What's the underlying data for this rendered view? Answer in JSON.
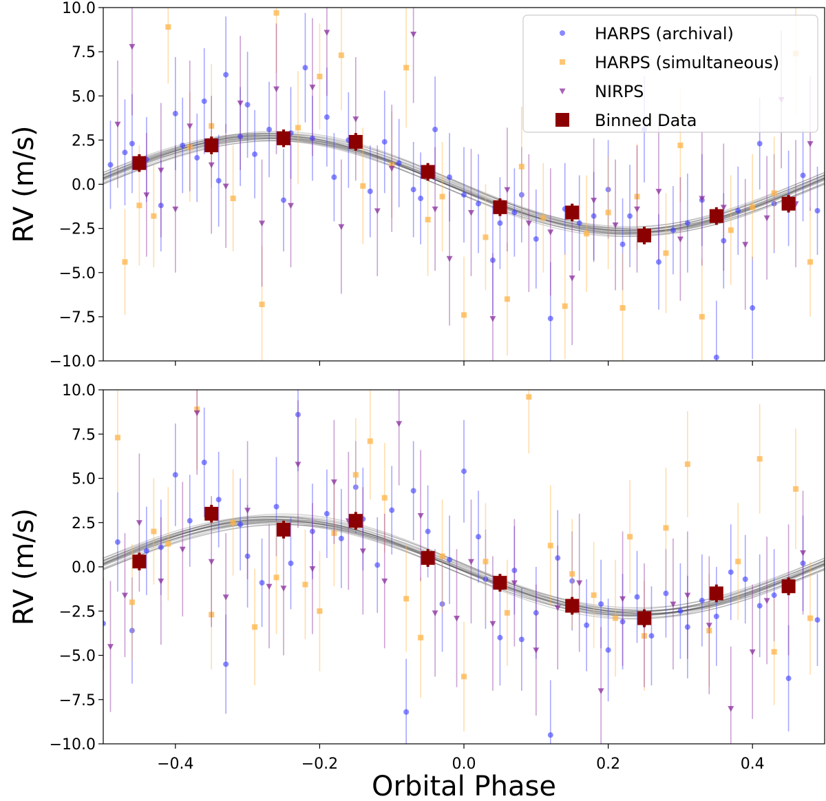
{
  "figure": {
    "xlabel": "Orbital Phase",
    "colors": {
      "harps_archival": "#3b3bff",
      "harps_simultaneous": "#ffb347",
      "nirps": "#8a2e9e",
      "binned": "#8b0000",
      "model": "#222222"
    },
    "legend": {
      "placement": "top-right (upper panel)",
      "entries": [
        {
          "label": "HARPS (archival)",
          "marker": "circle",
          "color": "#3b3bff"
        },
        {
          "label": "HARPS (simultaneous)",
          "marker": "square",
          "color": "#ffb347"
        },
        {
          "label": "NIRPS",
          "marker": "triangle-down",
          "color": "#8a2e9e"
        },
        {
          "label": "Binned Data",
          "marker": "big-square",
          "color": "#8b0000"
        }
      ]
    }
  },
  "chart_data": [
    {
      "type": "scatter",
      "panel": "top",
      "title": "",
      "xlabel": "",
      "ylabel": "RV (m/s)",
      "xlim": [
        -0.5,
        0.5
      ],
      "ylim": [
        -10,
        10
      ],
      "xticks": [
        -0.4,
        -0.2,
        0.0,
        0.2,
        0.4
      ],
      "yticks": [
        -10.0,
        -7.5,
        -5.0,
        -2.5,
        0.0,
        2.5,
        5.0,
        7.5,
        10.0
      ],
      "show_xtick_labels": false,
      "grid": false,
      "model": {
        "amplitude": 2.7,
        "peak_phase": -0.27,
        "n_draws": 20,
        "spread": 0.15
      },
      "series": [
        {
          "name": "HARPS (archival)",
          "x": [
            -0.49,
            -0.47,
            -0.46,
            -0.44,
            -0.42,
            -0.4,
            -0.39,
            -0.37,
            -0.36,
            -0.34,
            -0.33,
            -0.31,
            -0.3,
            -0.29,
            -0.27,
            -0.25,
            -0.24,
            -0.22,
            -0.21,
            -0.19,
            -0.18,
            -0.16,
            -0.13,
            -0.11,
            -0.09,
            -0.07,
            -0.06,
            -0.04,
            -0.02,
            0.0,
            0.02,
            0.04,
            0.05,
            0.07,
            0.08,
            0.1,
            0.12,
            0.14,
            0.16,
            0.18,
            0.2,
            0.22,
            0.23,
            0.25,
            0.27,
            0.29,
            0.31,
            0.33,
            0.35,
            0.36,
            0.38,
            0.4,
            0.41,
            0.43,
            0.45,
            0.47,
            0.49
          ],
          "y": [
            1.1,
            1.8,
            2.3,
            1.4,
            -1.2,
            4.0,
            2.2,
            1.5,
            4.7,
            0.2,
            6.2,
            2.7,
            4.5,
            1.7,
            3.1,
            -0.9,
            2.9,
            6.6,
            2.6,
            3.8,
            0.4,
            2.5,
            -0.4,
            2.4,
            1.2,
            -0.3,
            -0.8,
            3.1,
            0.4,
            -0.6,
            -1.1,
            -4.3,
            -2.2,
            -1.6,
            -0.6,
            -3.1,
            -7.6,
            -1.4,
            -2.2,
            -1.8,
            -0.3,
            -3.4,
            -1.8,
            3.1,
            -4.4,
            -2.6,
            -2.2,
            -0.9,
            -9.8,
            -3.2,
            -1.5,
            -7.0,
            2.3,
            -1.1,
            -0.8,
            0.5,
            -1.5
          ],
          "err": [
            2.5,
            3.0,
            2.8,
            2.4,
            2.6,
            3.2,
            2.7,
            2.5,
            3.0,
            2.6,
            3.3,
            2.8,
            3.0,
            2.5,
            2.7,
            2.9,
            2.6,
            3.1,
            2.4,
            2.8,
            2.5,
            2.7,
            2.6,
            2.9,
            2.5,
            2.7,
            2.6,
            3.0,
            2.5,
            2.7,
            2.8,
            3.1,
            2.6,
            2.5,
            2.7,
            2.8,
            3.2,
            2.6,
            2.7,
            2.5,
            2.8,
            2.6,
            2.9,
            3.0,
            2.7,
            2.5,
            2.8,
            2.6,
            3.2,
            2.7,
            2.5,
            2.9,
            2.6,
            2.8,
            2.7,
            2.6,
            2.5
          ]
        },
        {
          "name": "HARPS (simultaneous)",
          "x": [
            -0.47,
            -0.45,
            -0.43,
            -0.41,
            -0.38,
            -0.35,
            -0.32,
            -0.28,
            -0.26,
            -0.23,
            -0.2,
            -0.17,
            -0.14,
            -0.1,
            -0.08,
            -0.05,
            -0.03,
            0.0,
            0.03,
            0.06,
            0.08,
            0.11,
            0.14,
            0.17,
            0.2,
            0.22,
            0.24,
            0.28,
            0.3,
            0.33,
            0.37,
            0.4,
            0.43,
            0.46,
            0.48
          ],
          "y": [
            -4.4,
            -1.2,
            -1.8,
            8.9,
            2.1,
            3.3,
            -0.8,
            -6.8,
            9.7,
            3.2,
            6.1,
            7.3,
            -0.1,
            1.1,
            6.6,
            -2.0,
            -0.7,
            -7.4,
            -3.0,
            -6.5,
            1.0,
            -1.9,
            -6.9,
            -2.8,
            -1.6,
            -7.0,
            -0.7,
            -3.9,
            2.2,
            -7.5,
            -2.6,
            -1.3,
            -0.5,
            7.4,
            -4.4
          ],
          "err": [
            3.0,
            3.4,
            2.9,
            3.2,
            3.1,
            3.5,
            3.0,
            3.3,
            3.4,
            3.2,
            3.0,
            3.1,
            3.3,
            3.0,
            3.4,
            3.2,
            3.1,
            3.3,
            3.0,
            3.2,
            3.4,
            3.1,
            3.0,
            3.3,
            3.2,
            3.1,
            3.0,
            3.4,
            3.2,
            3.3,
            3.1,
            3.0,
            3.2,
            3.4,
            3.1
          ]
        },
        {
          "name": "NIRPS",
          "x": [
            -0.48,
            -0.46,
            -0.44,
            -0.42,
            -0.4,
            -0.38,
            -0.35,
            -0.33,
            -0.31,
            -0.28,
            -0.26,
            -0.24,
            -0.21,
            -0.19,
            -0.17,
            -0.15,
            -0.12,
            -0.1,
            -0.07,
            -0.04,
            -0.02,
            0.01,
            0.04,
            0.06,
            0.09,
            0.12,
            0.15,
            0.18,
            0.21,
            0.24,
            0.27,
            0.3,
            0.33,
            0.36,
            0.39,
            0.42,
            0.44,
            0.46,
            0.48
          ],
          "y": [
            3.4,
            7.8,
            -0.6,
            0.8,
            -1.4,
            3.3,
            1.1,
            -0.1,
            4.6,
            -2.2,
            5.4,
            -1.2,
            5.5,
            8.6,
            -2.4,
            3.7,
            -1.5,
            0.9,
            8.5,
            -1.4,
            -4.2,
            -1.6,
            -7.6,
            -0.3,
            -2.2,
            -2.7,
            -5.3,
            -0.9,
            -2.3,
            -1.4,
            -0.4,
            -3.1,
            -0.8,
            -1.3,
            -3.4,
            -1.9,
            4.8,
            -1.1,
            2.3
          ],
          "err": [
            3.6,
            3.9,
            3.5,
            3.8,
            3.6,
            3.7,
            3.9,
            3.5,
            3.8,
            3.6,
            3.7,
            3.5,
            3.9,
            3.6,
            3.8,
            3.5,
            3.7,
            3.6,
            3.9,
            3.5,
            3.8,
            3.6,
            3.7,
            3.5,
            3.9,
            3.6,
            3.8,
            3.5,
            3.7,
            3.6,
            3.9,
            3.5,
            3.8,
            3.6,
            3.7,
            3.5,
            3.9,
            3.6,
            3.8
          ]
        },
        {
          "name": "Binned Data",
          "x": [
            -0.45,
            -0.35,
            -0.25,
            -0.15,
            -0.05,
            0.05,
            0.15,
            0.25,
            0.35,
            0.45
          ],
          "y": [
            1.2,
            2.2,
            2.6,
            2.4,
            0.7,
            -1.3,
            -1.6,
            -2.9,
            -1.8,
            -1.1
          ],
          "err": [
            0.5,
            0.5,
            0.5,
            0.5,
            0.5,
            0.5,
            0.5,
            0.5,
            0.5,
            0.5
          ]
        }
      ]
    },
    {
      "type": "scatter",
      "panel": "bottom",
      "title": "",
      "xlabel": "Orbital Phase",
      "ylabel": "RV (m/s)",
      "xlim": [
        -0.5,
        0.5
      ],
      "ylim": [
        -10,
        10
      ],
      "xticks": [
        -0.4,
        -0.2,
        0.0,
        0.2,
        0.4
      ],
      "yticks": [
        -10.0,
        -7.5,
        -5.0,
        -2.5,
        0.0,
        2.5,
        5.0,
        7.5,
        10.0
      ],
      "show_xtick_labels": true,
      "grid": false,
      "model": {
        "amplitude": 2.65,
        "peak_phase": -0.26,
        "n_draws": 20,
        "spread": 0.2
      },
      "series": [
        {
          "name": "HARPS (archival)",
          "x": [
            -0.5,
            -0.48,
            -0.46,
            -0.44,
            -0.42,
            -0.4,
            -0.38,
            -0.36,
            -0.34,
            -0.33,
            -0.31,
            -0.3,
            -0.28,
            -0.26,
            -0.24,
            -0.23,
            -0.21,
            -0.19,
            -0.17,
            -0.15,
            -0.14,
            -0.12,
            -0.1,
            -0.08,
            -0.07,
            -0.05,
            -0.03,
            -0.02,
            0.0,
            0.02,
            0.03,
            0.05,
            0.07,
            0.08,
            0.1,
            0.12,
            0.13,
            0.15,
            0.17,
            0.19,
            0.2,
            0.22,
            0.24,
            0.26,
            0.28,
            0.3,
            0.31,
            0.33,
            0.35,
            0.37,
            0.39,
            0.41,
            0.43,
            0.45,
            0.47,
            0.49
          ],
          "y": [
            -3.2,
            1.4,
            -3.6,
            0.9,
            1.1,
            5.2,
            2.6,
            5.9,
            3.8,
            -5.5,
            2.4,
            0.6,
            -0.9,
            3.4,
            0.2,
            8.6,
            2.0,
            3.0,
            1.6,
            4.5,
            2.7,
            0.1,
            3.2,
            -8.2,
            4.3,
            2.0,
            -2.1,
            0.4,
            5.4,
            1.7,
            -0.7,
            -4.0,
            -0.2,
            -4.1,
            -2.6,
            -9.5,
            0.5,
            -0.8,
            -3.3,
            -2.1,
            -4.7,
            -3.1,
            -1.7,
            -3.9,
            -1.5,
            -2.5,
            -3.4,
            -1.9,
            -2.8,
            -0.3,
            -0.7,
            -2.2,
            -1.6,
            -6.3,
            0.2,
            -3.0
          ],
          "err": [
            2.6,
            2.8,
            3.0,
            2.5,
            2.7,
            2.9,
            2.6,
            3.1,
            2.7,
            2.8,
            2.6,
            2.9,
            2.5,
            2.8,
            2.6,
            3.2,
            2.7,
            2.5,
            2.8,
            2.6,
            2.9,
            2.7,
            2.5,
            3.0,
            2.8,
            2.6,
            2.7,
            2.5,
            2.9,
            2.6,
            2.8,
            2.7,
            2.5,
            2.9,
            2.6,
            3.1,
            2.7,
            2.8,
            2.6,
            2.5,
            2.9,
            2.7,
            2.6,
            2.8,
            2.5,
            2.7,
            2.9,
            2.6,
            2.8,
            2.7,
            2.5,
            2.9,
            2.6,
            3.0,
            2.7,
            2.6
          ]
        },
        {
          "name": "HARPS (simultaneous)",
          "x": [
            -0.48,
            -0.46,
            -0.43,
            -0.41,
            -0.37,
            -0.35,
            -0.32,
            -0.29,
            -0.26,
            -0.22,
            -0.2,
            -0.18,
            -0.15,
            -0.13,
            -0.11,
            -0.08,
            -0.06,
            -0.03,
            0.0,
            0.03,
            0.06,
            0.09,
            0.12,
            0.15,
            0.18,
            0.21,
            0.23,
            0.25,
            0.28,
            0.31,
            0.34,
            0.38,
            0.41,
            0.43,
            0.46,
            0.48
          ],
          "y": [
            7.3,
            -2.0,
            2.0,
            1.3,
            8.9,
            -2.7,
            2.5,
            -3.4,
            -0.6,
            -1.0,
            -2.5,
            1.9,
            5.2,
            7.1,
            3.9,
            -1.8,
            -4.0,
            0.6,
            -6.2,
            0.3,
            -2.6,
            9.6,
            1.2,
            -0.4,
            -1.6,
            -2.9,
            1.7,
            -3.9,
            2.2,
            5.8,
            -3.6,
            0.3,
            6.1,
            -4.8,
            4.4,
            -2.9
          ],
          "err": [
            3.1,
            3.3,
            3.0,
            3.2,
            3.4,
            3.1,
            3.0,
            3.3,
            3.2,
            3.1,
            3.4,
            3.0,
            3.2,
            3.3,
            3.1,
            3.0,
            3.4,
            3.2,
            3.1,
            3.3,
            3.0,
            3.2,
            3.4,
            3.1,
            3.0,
            3.3,
            3.2,
            3.1,
            3.4,
            3.0,
            3.2,
            3.3,
            3.1,
            3.0,
            3.4,
            3.2
          ]
        },
        {
          "name": "NIRPS",
          "x": [
            -0.49,
            -0.47,
            -0.45,
            -0.42,
            -0.39,
            -0.37,
            -0.35,
            -0.33,
            -0.3,
            -0.27,
            -0.25,
            -0.23,
            -0.21,
            -0.18,
            -0.16,
            -0.14,
            -0.11,
            -0.09,
            -0.06,
            -0.04,
            -0.01,
            0.01,
            0.04,
            0.07,
            0.1,
            0.13,
            0.16,
            0.19,
            0.22,
            0.25,
            0.29,
            0.31,
            0.34,
            0.37,
            0.4,
            0.42,
            0.45,
            0.47
          ],
          "y": [
            -4.5,
            -1.6,
            2.5,
            -0.8,
            1.0,
            8.7,
            0.3,
            -1.7,
            3.2,
            -1.1,
            -1.2,
            5.8,
            -0.1,
            4.8,
            2.6,
            0.9,
            -0.8,
            8.1,
            2.9,
            -2.6,
            -2.9,
            0.3,
            -3.2,
            -0.9,
            -4.7,
            -2.3,
            -0.9,
            -7.0,
            -1.8,
            -3.3,
            -2.1,
            -1.6,
            -3.3,
            -8.0,
            -4.8,
            -1.9,
            -1.3,
            0.8
          ],
          "err": [
            3.7,
            3.5,
            3.9,
            3.6,
            3.8,
            3.5,
            3.7,
            3.6,
            3.9,
            3.5,
            3.8,
            3.6,
            3.7,
            3.5,
            3.9,
            3.6,
            3.8,
            3.5,
            3.7,
            3.6,
            3.9,
            3.5,
            3.8,
            3.6,
            3.7,
            3.5,
            3.9,
            3.6,
            3.8,
            3.5,
            3.7,
            3.6,
            3.9,
            3.5,
            3.8,
            3.6,
            3.7,
            3.5
          ]
        },
        {
          "name": "Binned Data",
          "x": [
            -0.45,
            -0.35,
            -0.25,
            -0.15,
            -0.05,
            0.05,
            0.15,
            0.25,
            0.35,
            0.45
          ],
          "y": [
            0.3,
            3.0,
            2.1,
            2.6,
            0.5,
            -0.9,
            -2.2,
            -2.9,
            -1.5,
            -1.1
          ],
          "err": [
            0.5,
            0.5,
            0.5,
            0.5,
            0.5,
            0.5,
            0.5,
            0.5,
            0.5,
            0.5
          ]
        }
      ]
    }
  ]
}
